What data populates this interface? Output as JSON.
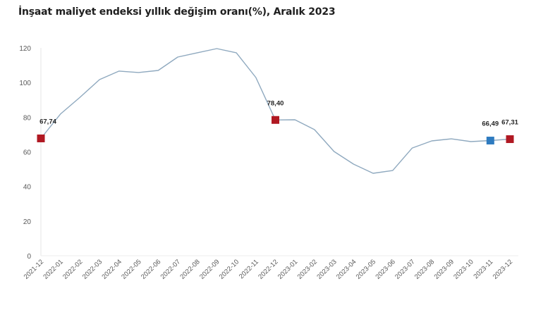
{
  "chart_data": {
    "type": "line",
    "title": "İnşaat maliyet endeksi yıllık değişim oranı(%), Aralık 2023",
    "xlabel": "",
    "ylabel": "",
    "ylim": [
      0,
      120
    ],
    "yticks": [
      0,
      20,
      40,
      60,
      80,
      100,
      120
    ],
    "grid": false,
    "legend": null,
    "categories": [
      "2021-12",
      "2022-01",
      "2022-02",
      "2022-03",
      "2022-04",
      "2022-05",
      "2022-06",
      "2022-07",
      "2022-08",
      "2022-09",
      "2022-10",
      "2022-11",
      "2022-12",
      "2023-01",
      "2023-02",
      "2023-03",
      "2023-04",
      "2023-05",
      "2023-06",
      "2023-07",
      "2023-08",
      "2023-09",
      "2023-10",
      "2023-11",
      "2023-12"
    ],
    "series": [
      {
        "name": "Yıllık değişim oranı (%)",
        "color": "#8fa9bf",
        "values": [
          67.74,
          81.8,
          91.5,
          101.7,
          106.6,
          105.8,
          107.0,
          114.7,
          117.2,
          119.6,
          117.2,
          102.9,
          78.4,
          78.5,
          72.8,
          60.2,
          52.9,
          47.6,
          49.2,
          62.2,
          66.3,
          67.5,
          65.9,
          66.49,
          67.31
        ]
      }
    ],
    "annotations": [
      {
        "category": "2021-12",
        "label": "67,74",
        "marker_color": "#b01822"
      },
      {
        "category": "2022-12",
        "label": "78,40",
        "marker_color": "#b01822"
      },
      {
        "category": "2023-11",
        "label": "66,49",
        "marker_color": "#2e7bc0"
      },
      {
        "category": "2023-12",
        "label": "67,31",
        "marker_color": "#b01822"
      }
    ]
  }
}
